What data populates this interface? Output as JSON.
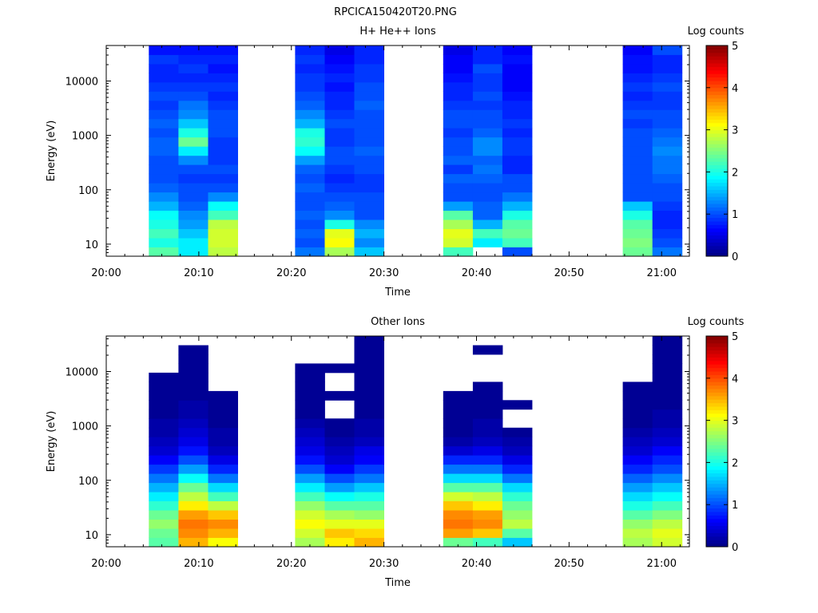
{
  "figure": {
    "title": "RPCICA150420T20.PNG"
  },
  "chart_data": [
    {
      "type": "heatmap",
      "title": "H+ He++ Ions",
      "xlabel": "Time",
      "ylabel": "Energy (eV)",
      "y_scale": "log",
      "xlim": [
        "20:00",
        "21:03"
      ],
      "ylim": [
        6,
        45000
      ],
      "x_ticks": [
        "20:00",
        "20:10",
        "20:20",
        "20:30",
        "20:40",
        "20:50",
        "21:00"
      ],
      "y_ticks": [
        "10",
        "100",
        "1000",
        "10000"
      ],
      "colorbar": {
        "label": "Log counts",
        "range": [
          0,
          5
        ],
        "ticks": [
          "0",
          "1",
          "2",
          "3",
          "4",
          "5"
        ]
      },
      "columns": [
        {
          "start": "20:04.6",
          "end": "20:07.8",
          "profile": [
            2.3,
            2.0,
            2.2,
            2.0,
            1.9,
            1.5,
            1.3,
            1.1,
            1.0,
            1.0,
            1.0,
            1.1,
            1.1,
            1.0,
            1.1,
            1.0,
            0.9,
            1.0,
            0.9,
            0.8,
            0.8,
            0.9,
            0.7
          ]
        },
        {
          "start": "20:07.8",
          "end": "20:11.0",
          "profile": [
            1.8,
            1.8,
            1.6,
            1.4,
            1.3,
            1.1,
            1.0,
            1.0,
            0.9,
            1.0,
            1.3,
            1.8,
            2.4,
            2.0,
            1.6,
            1.3,
            1.2,
            1.0,
            0.9,
            0.8,
            0.9,
            0.8,
            0.7
          ]
        },
        {
          "start": "20:11.0",
          "end": "20:14.2",
          "profile": [
            2.8,
            2.9,
            2.9,
            2.8,
            2.2,
            1.9,
            1.3,
            1.0,
            0.9,
            1.0,
            0.9,
            0.9,
            0.9,
            1.0,
            1.0,
            1.0,
            0.9,
            0.8,
            0.9,
            0.8,
            0.7,
            0.8,
            0.7
          ]
        },
        {
          "start": "20:20.4",
          "end": "20:23.6",
          "profile": [
            1.2,
            1.0,
            1.1,
            1.0,
            1.1,
            1.0,
            1.0,
            1.1,
            1.0,
            1.1,
            1.4,
            1.9,
            2.1,
            2.0,
            1.5,
            1.3,
            1.1,
            1.0,
            0.9,
            0.9,
            0.8,
            0.9,
            0.8
          ]
        },
        {
          "start": "20:23.6",
          "end": "20:26.8",
          "profile": [
            2.7,
            3.1,
            3.0,
            2.0,
            1.3,
            1.1,
            1.0,
            0.9,
            0.8,
            0.9,
            1.0,
            1.0,
            0.9,
            0.9,
            1.0,
            0.9,
            0.8,
            0.8,
            0.7,
            0.8,
            0.7,
            0.6,
            0.5
          ]
        },
        {
          "start": "20:26.8",
          "end": "20:30.0",
          "profile": [
            1.6,
            1.3,
            1.5,
            1.3,
            1.0,
            1.0,
            1.0,
            0.9,
            0.9,
            1.0,
            1.0,
            1.1,
            1.0,
            1.0,
            1.0,
            1.0,
            1.1,
            1.0,
            1.0,
            0.9,
            0.9,
            0.8,
            0.8
          ]
        },
        {
          "start": "20:36.4",
          "end": "20:39.6",
          "profile": [
            2.2,
            2.9,
            3.0,
            2.7,
            2.3,
            1.4,
            1.0,
            1.0,
            1.1,
            0.9,
            1.1,
            1.0,
            1.0,
            0.9,
            1.0,
            1.0,
            0.9,
            0.8,
            0.8,
            0.7,
            0.6,
            0.6,
            0.5
          ]
        },
        {
          "start": "20:39.6",
          "end": "20:42.8",
          "profile": [
            -1,
            1.8,
            2.2,
            1.5,
            1.1,
            1.1,
            1.0,
            1.0,
            1.1,
            1.2,
            1.1,
            1.3,
            1.3,
            1.1,
            1.0,
            1.0,
            0.9,
            1.0,
            0.9,
            0.9,
            1.0,
            0.8,
            0.8
          ]
        },
        {
          "start": "20:42.8",
          "end": "20:46.0",
          "profile": [
            1.0,
            2.2,
            2.4,
            2.3,
            2.0,
            1.5,
            1.2,
            1.0,
            1.0,
            0.8,
            0.8,
            0.9,
            0.9,
            0.8,
            0.9,
            0.8,
            0.8,
            0.7,
            0.6,
            0.6,
            0.6,
            0.7,
            0.6
          ]
        },
        {
          "start": "20:55.8",
          "end": "20:59.0",
          "profile": [
            2.4,
            2.5,
            2.4,
            2.3,
            2.0,
            1.6,
            1.0,
            1.0,
            1.0,
            1.0,
            1.0,
            1.0,
            1.0,
            1.0,
            0.9,
            1.0,
            0.9,
            0.8,
            0.9,
            0.8,
            0.7,
            0.7,
            0.6
          ]
        },
        {
          "start": "20:59.0",
          "end": "21:02.2",
          "profile": [
            1.2,
            1.0,
            0.9,
            0.8,
            0.8,
            0.9,
            1.0,
            1.0,
            1.1,
            1.2,
            1.2,
            1.3,
            1.2,
            1.1,
            1.0,
            1.0,
            0.9,
            0.9,
            1.0,
            0.9,
            0.8,
            0.8,
            1.0
          ]
        }
      ]
    },
    {
      "type": "heatmap",
      "title": "Other Ions",
      "xlabel": "Time",
      "ylabel": "Energy (eV)",
      "y_scale": "log",
      "xlim": [
        "20:00",
        "21:03"
      ],
      "ylim": [
        6,
        45000
      ],
      "x_ticks": [
        "20:00",
        "20:10",
        "20:20",
        "20:30",
        "20:40",
        "20:50",
        "21:00"
      ],
      "y_ticks": [
        "10",
        "100",
        "1000",
        "10000"
      ],
      "colorbar": {
        "label": "Log counts",
        "range": [
          0,
          5
        ],
        "ticks": [
          "0",
          "1",
          "2",
          "3",
          "4",
          "5"
        ]
      },
      "columns": [
        {
          "start": "20:04.6",
          "end": "20:07.8",
          "profile": [
            2.3,
            2.4,
            2.6,
            2.4,
            2.1,
            1.8,
            1.5,
            1.2,
            0.9,
            0.6,
            0.4,
            0.3,
            0.2,
            0.2,
            0.1,
            0.1,
            0.1,
            0.1,
            0.1,
            -1,
            -1,
            -1,
            -1
          ]
        },
        {
          "start": "20:07.8",
          "end": "20:11.0",
          "profile": [
            3.5,
            3.7,
            3.8,
            3.6,
            3.2,
            2.8,
            2.4,
            1.9,
            1.4,
            1.0,
            0.7,
            0.5,
            0.4,
            0.3,
            0.2,
            0.2,
            0.1,
            0.1,
            0.1,
            0.1,
            0.1,
            0.1,
            -1
          ]
        },
        {
          "start": "20:11.0",
          "end": "20:14.2",
          "profile": [
            3.1,
            3.5,
            3.7,
            3.4,
            2.8,
            2.2,
            1.7,
            1.2,
            0.8,
            0.5,
            0.3,
            0.2,
            0.2,
            0.1,
            0.1,
            0.1,
            0.1,
            -1,
            -1,
            -1,
            -1,
            -1,
            -1
          ]
        },
        {
          "start": "20:20.4",
          "end": "20:23.6",
          "profile": [
            2.7,
            2.9,
            3.1,
            2.9,
            2.6,
            2.2,
            1.8,
            1.4,
            1.0,
            0.7,
            0.5,
            0.4,
            0.3,
            0.2,
            0.1,
            0.1,
            0.1,
            0.1,
            0.1,
            0.1,
            -1,
            -1,
            -1
          ]
        },
        {
          "start": "20:23.6",
          "end": "20:26.8",
          "profile": [
            3.2,
            3.4,
            3.0,
            2.7,
            2.3,
            1.9,
            1.4,
            1.0,
            0.6,
            0.4,
            0.3,
            0.2,
            0.1,
            0.1,
            -1,
            -1,
            0.1,
            -1,
            -1,
            0.1,
            -1,
            -1,
            -1
          ]
        },
        {
          "start": "20:26.8",
          "end": "20:30.0",
          "profile": [
            3.5,
            3.3,
            3.0,
            2.6,
            2.3,
            2.0,
            1.6,
            1.2,
            0.9,
            0.6,
            0.5,
            0.3,
            0.2,
            0.2,
            0.1,
            0.1,
            0.1,
            0.1,
            0.1,
            0.1,
            0.1,
            0.1,
            0.1
          ]
        },
        {
          "start": "20:36.4",
          "end": "20:39.6",
          "profile": [
            2.4,
            3.6,
            3.8,
            3.7,
            3.4,
            2.9,
            2.3,
            1.7,
            1.2,
            0.8,
            0.4,
            0.2,
            0.1,
            0.1,
            0.1,
            0.1,
            0.1,
            -1,
            -1,
            -1,
            -1,
            -1,
            -1
          ]
        },
        {
          "start": "20:39.6",
          "end": "20:42.8",
          "profile": [
            2.2,
            3.4,
            3.7,
            3.6,
            3.2,
            2.8,
            2.3,
            1.7,
            1.2,
            0.8,
            0.5,
            0.3,
            0.2,
            0.2,
            0.1,
            0.1,
            0.1,
            0.1,
            -1,
            -1,
            -1,
            0.1,
            -1
          ]
        },
        {
          "start": "20:42.8",
          "end": "20:46.0",
          "profile": [
            1.6,
            2.3,
            2.8,
            2.6,
            2.4,
            2.1,
            1.7,
            1.2,
            0.8,
            0.5,
            0.3,
            0.2,
            0.1,
            -1,
            -1,
            0.1,
            -1,
            -1,
            -1,
            -1,
            -1,
            -1,
            -1
          ]
        },
        {
          "start": "20:55.8",
          "end": "20:59.0",
          "profile": [
            2.7,
            2.8,
            2.6,
            2.3,
            2.0,
            1.7,
            1.4,
            1.1,
            0.8,
            0.6,
            0.4,
            0.3,
            0.2,
            0.1,
            0.1,
            0.1,
            0.1,
            0.1,
            -1,
            -1,
            -1,
            -1,
            -1
          ]
        },
        {
          "start": "20:59.0",
          "end": "21:02.2",
          "profile": [
            2.9,
            3.0,
            2.8,
            2.5,
            2.2,
            1.9,
            1.6,
            1.3,
            1.0,
            0.8,
            0.6,
            0.4,
            0.3,
            0.2,
            0.2,
            0.1,
            0.1,
            0.1,
            0.1,
            0.1,
            0.1,
            0.1,
            0.1
          ]
        }
      ]
    }
  ]
}
